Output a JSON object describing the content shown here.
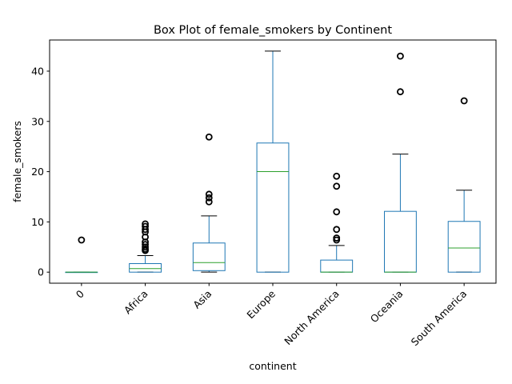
{
  "chart_data": {
    "type": "box",
    "title": "Box Plot of female_smokers by Continent",
    "xlabel": "continent",
    "ylabel": "female_smokers",
    "ylim": [
      -2.2,
      46.2
    ],
    "yticks": [
      0,
      10,
      20,
      30,
      40
    ],
    "grid": false,
    "colors": {
      "box": "#1f77b4",
      "median": "#2ca02c",
      "outlier": "#000000"
    },
    "categories": [
      "0",
      "Africa",
      "Asia",
      "Europe",
      "North America",
      "Oceania",
      "South America"
    ],
    "boxes": [
      {
        "category": "0",
        "whisker_low": 0,
        "q1": 0,
        "median": 0,
        "q3": 0,
        "whisker_high": 0,
        "outliers": [
          6.4
        ]
      },
      {
        "category": "Africa",
        "whisker_low": 0,
        "q1": 0,
        "median": 0.7,
        "q3": 1.7,
        "whisker_high": 3.3,
        "outliers": [
          4.3,
          4.6,
          5.0,
          5.5,
          6.0,
          7.0,
          8.0,
          8.5,
          9.1,
          9.6
        ]
      },
      {
        "category": "Asia",
        "whisker_low": 0,
        "q1": 0.3,
        "median": 1.9,
        "q3": 5.8,
        "whisker_high": 11.2,
        "outliers": [
          14.0,
          14.8,
          15.5,
          26.9
        ]
      },
      {
        "category": "Europe",
        "whisker_low": 0,
        "q1": 0,
        "median": 20.0,
        "q3": 25.7,
        "whisker_high": 44.0,
        "outliers": []
      },
      {
        "category": "North America",
        "whisker_low": 0,
        "q1": 0,
        "median": 0,
        "q3": 2.4,
        "whisker_high": 5.3,
        "outliers": [
          6.4,
          6.8,
          8.5,
          12.0,
          17.1,
          19.1
        ]
      },
      {
        "category": "Oceania",
        "whisker_low": 0,
        "q1": 0,
        "median": 0,
        "q3": 12.1,
        "whisker_high": 23.5,
        "outliers": [
          35.9,
          43.0
        ]
      },
      {
        "category": "South America",
        "whisker_low": 0,
        "q1": 0,
        "median": 4.8,
        "q3": 10.1,
        "whisker_high": 16.3,
        "outliers": [
          34.1
        ]
      }
    ]
  }
}
